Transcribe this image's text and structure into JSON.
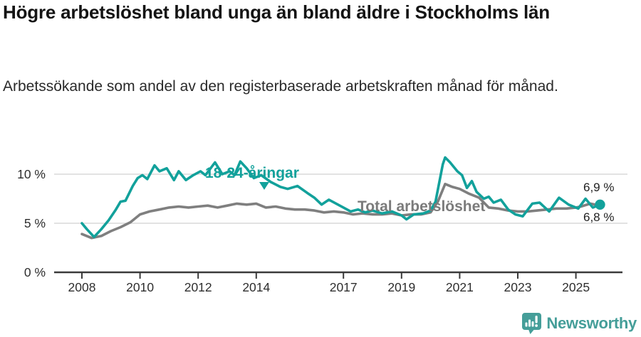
{
  "header": {
    "title": "Högre arbetslöshet bland unga än bland äldre i Stockholms län",
    "subtitle": "Arbetssökande som andel av den registerbaserade arbetskraften månad för månad."
  },
  "chart_data": {
    "type": "line",
    "unit": "%",
    "grid": true,
    "x_axis": {
      "ticks": [
        2008,
        2010,
        2012,
        2014,
        2017,
        2019,
        2021,
        2023,
        2025
      ],
      "range": [
        2007.9,
        2026.2
      ]
    },
    "y_axis": {
      "range": [
        0,
        12
      ],
      "ticks": [
        {
          "value": 0,
          "label": "0 %"
        },
        {
          "value": 5,
          "label": "5 %"
        },
        {
          "value": 10,
          "label": "10 %"
        }
      ]
    },
    "series": [
      {
        "name": "18-24-åringar",
        "color": "#12a19b",
        "end_label": "6,9 %",
        "end_dot": true,
        "points": [
          [
            2008.0,
            5.0
          ],
          [
            2008.17,
            4.4
          ],
          [
            2008.42,
            3.6
          ],
          [
            2008.67,
            4.4
          ],
          [
            2008.92,
            5.3
          ],
          [
            2009.17,
            6.4
          ],
          [
            2009.33,
            7.2
          ],
          [
            2009.5,
            7.3
          ],
          [
            2009.75,
            8.8
          ],
          [
            2009.92,
            9.6
          ],
          [
            2010.08,
            9.9
          ],
          [
            2010.25,
            9.5
          ],
          [
            2010.5,
            10.9
          ],
          [
            2010.67,
            10.3
          ],
          [
            2010.92,
            10.6
          ],
          [
            2011.17,
            9.4
          ],
          [
            2011.33,
            10.3
          ],
          [
            2011.58,
            9.4
          ],
          [
            2011.83,
            9.9
          ],
          [
            2012.08,
            10.3
          ],
          [
            2012.25,
            9.9
          ],
          [
            2012.58,
            11.2
          ],
          [
            2012.83,
            10.0
          ],
          [
            2013.08,
            10.3
          ],
          [
            2013.25,
            9.9
          ],
          [
            2013.45,
            11.3
          ],
          [
            2013.67,
            10.6
          ],
          [
            2013.92,
            9.6
          ],
          [
            2014.17,
            9.9
          ],
          [
            2014.5,
            9.2
          ],
          [
            2014.83,
            8.7
          ],
          [
            2015.08,
            8.5
          ],
          [
            2015.42,
            8.8
          ],
          [
            2015.75,
            8.1
          ],
          [
            2016.0,
            7.6
          ],
          [
            2016.25,
            6.9
          ],
          [
            2016.5,
            7.4
          ],
          [
            2016.75,
            7.0
          ],
          [
            2017.0,
            6.6
          ],
          [
            2017.25,
            6.2
          ],
          [
            2017.5,
            6.4
          ],
          [
            2017.75,
            6.1
          ],
          [
            2018.0,
            6.3
          ],
          [
            2018.33,
            6.0
          ],
          [
            2018.67,
            6.2
          ],
          [
            2019.0,
            5.8
          ],
          [
            2019.17,
            5.4
          ],
          [
            2019.42,
            5.9
          ],
          [
            2019.75,
            6.0
          ],
          [
            2020.0,
            6.3
          ],
          [
            2020.17,
            7.2
          ],
          [
            2020.42,
            11.0
          ],
          [
            2020.5,
            11.7
          ],
          [
            2020.67,
            11.2
          ],
          [
            2020.92,
            10.3
          ],
          [
            2021.08,
            9.9
          ],
          [
            2021.25,
            8.6
          ],
          [
            2021.42,
            9.3
          ],
          [
            2021.58,
            8.2
          ],
          [
            2021.83,
            7.5
          ],
          [
            2022.0,
            7.7
          ],
          [
            2022.17,
            7.1
          ],
          [
            2022.42,
            7.4
          ],
          [
            2022.67,
            6.4
          ],
          [
            2022.92,
            5.9
          ],
          [
            2023.17,
            5.7
          ],
          [
            2023.5,
            7.0
          ],
          [
            2023.75,
            7.1
          ],
          [
            2024.08,
            6.2
          ],
          [
            2024.42,
            7.6
          ],
          [
            2024.75,
            6.9
          ],
          [
            2025.08,
            6.5
          ],
          [
            2025.33,
            7.5
          ],
          [
            2025.58,
            6.6
          ],
          [
            2025.83,
            6.9
          ]
        ]
      },
      {
        "name": "Total arbetslöshet",
        "color": "#7f7f7f",
        "end_label": "6,8 %",
        "end_dot": false,
        "points": [
          [
            2008.0,
            3.9
          ],
          [
            2008.33,
            3.5
          ],
          [
            2008.67,
            3.7
          ],
          [
            2009.0,
            4.2
          ],
          [
            2009.33,
            4.6
          ],
          [
            2009.67,
            5.1
          ],
          [
            2010.0,
            5.9
          ],
          [
            2010.33,
            6.2
          ],
          [
            2010.67,
            6.4
          ],
          [
            2011.0,
            6.6
          ],
          [
            2011.33,
            6.7
          ],
          [
            2011.67,
            6.6
          ],
          [
            2012.0,
            6.7
          ],
          [
            2012.33,
            6.8
          ],
          [
            2012.67,
            6.6
          ],
          [
            2013.0,
            6.8
          ],
          [
            2013.33,
            7.0
          ],
          [
            2013.67,
            6.9
          ],
          [
            2014.0,
            7.0
          ],
          [
            2014.33,
            6.6
          ],
          [
            2014.67,
            6.7
          ],
          [
            2015.0,
            6.5
          ],
          [
            2015.33,
            6.4
          ],
          [
            2015.67,
            6.4
          ],
          [
            2016.0,
            6.3
          ],
          [
            2016.33,
            6.1
          ],
          [
            2016.67,
            6.2
          ],
          [
            2017.0,
            6.1
          ],
          [
            2017.33,
            5.9
          ],
          [
            2017.67,
            6.0
          ],
          [
            2018.0,
            5.9
          ],
          [
            2018.33,
            5.9
          ],
          [
            2018.67,
            6.0
          ],
          [
            2019.0,
            5.8
          ],
          [
            2019.33,
            5.9
          ],
          [
            2019.67,
            5.9
          ],
          [
            2020.0,
            6.1
          ],
          [
            2020.25,
            7.2
          ],
          [
            2020.5,
            9.0
          ],
          [
            2020.75,
            8.7
          ],
          [
            2021.0,
            8.5
          ],
          [
            2021.33,
            8.0
          ],
          [
            2021.67,
            7.6
          ],
          [
            2022.0,
            6.6
          ],
          [
            2022.33,
            6.5
          ],
          [
            2022.67,
            6.3
          ],
          [
            2023.0,
            6.2
          ],
          [
            2023.33,
            6.2
          ],
          [
            2023.67,
            6.3
          ],
          [
            2024.0,
            6.4
          ],
          [
            2024.33,
            6.5
          ],
          [
            2024.67,
            6.5
          ],
          [
            2025.0,
            6.6
          ],
          [
            2025.17,
            6.7
          ],
          [
            2025.5,
            7.0
          ],
          [
            2025.83,
            6.8
          ]
        ]
      }
    ]
  },
  "footer": {
    "brand": "Newsworthy",
    "brand_color": "#459e99",
    "logo_icon": "newsworthy-pin-icon"
  }
}
